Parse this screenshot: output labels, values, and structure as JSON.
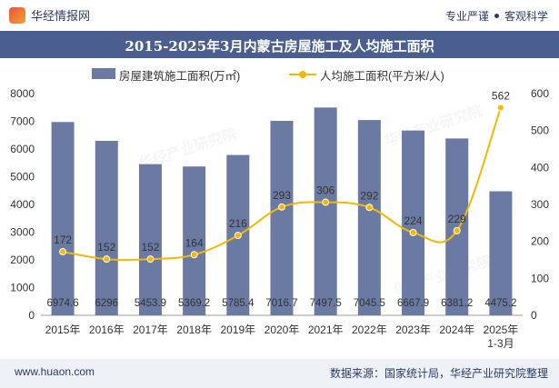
{
  "header": {
    "brand_name": "华经情报网",
    "tagline_left": "专业严谨",
    "tagline_right": "客观科学"
  },
  "legend": {
    "bar_label": "房屋建筑施工面积(万㎡)",
    "line_label": "人均施工面积(平方米/人)"
  },
  "footer": {
    "website": "www.huaon.com",
    "source": "数据来源：国家统计局，华经产业研究院整理"
  },
  "colors": {
    "bar": "#6b7aa3",
    "line": "#f5b800",
    "title_band": "#4a5f8f"
  },
  "chart_data": {
    "type": "bar",
    "title": "2015-2025年3月内蒙古房屋施工及人均施工面积",
    "categories": [
      "2015年",
      "2016年",
      "2017年",
      "2018年",
      "2019年",
      "2020年",
      "2021年",
      "2022年",
      "2023年",
      "2024年",
      "2025年\n1-3月"
    ],
    "series": [
      {
        "name": "房屋建筑施工面积(万㎡)",
        "type": "bar",
        "axis": "left",
        "values": [
          6974.6,
          6296,
          5453.9,
          5369.2,
          5785.4,
          7016.7,
          7497.5,
          7045.5,
          6667.9,
          6381.2,
          4475.2
        ],
        "labels": [
          "6974.6",
          "6296",
          "5453.9",
          "5369.2",
          "5785.4",
          "7016.7",
          "7497.5",
          "7045.5",
          "6667.9",
          "6381.2",
          "4475.2"
        ]
      },
      {
        "name": "人均施工面积(平方米/人)",
        "type": "line",
        "axis": "right",
        "values": [
          172,
          152,
          152,
          164,
          216,
          293,
          306,
          292,
          224,
          229,
          562
        ],
        "labels": [
          "172",
          "152",
          "152",
          "164",
          "216",
          "293",
          "306",
          "292",
          "224",
          "229",
          "562"
        ]
      }
    ],
    "y_left": {
      "min": 0,
      "max": 8000,
      "ticks": [
        "0",
        "1000",
        "2000",
        "3000",
        "4000",
        "5000",
        "6000",
        "7000",
        "8000"
      ]
    },
    "y_right": {
      "min": 0,
      "max": 600,
      "ticks": [
        "0",
        "100",
        "200",
        "300",
        "400",
        "500",
        "600"
      ]
    },
    "grid": false,
    "legend_position": "top"
  }
}
